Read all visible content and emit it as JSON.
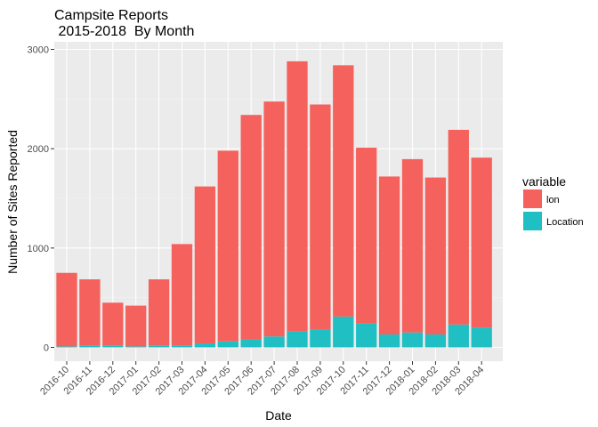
{
  "chart_data": {
    "type": "bar",
    "stacked": true,
    "title_line1": "Campsite Reports",
    "title_line2": " 2015-2018  By Month",
    "xlabel": "Date",
    "ylabel": "Number of Sites Reported",
    "ylim": [
      0,
      3000
    ],
    "yticks": [
      0,
      1000,
      2000,
      3000
    ],
    "grid": true,
    "legend": {
      "title": "variable",
      "position": "right"
    },
    "categories": [
      "2016-10",
      "2016-11",
      "2016-12",
      "2017-01",
      "2017-02",
      "2017-03",
      "2017-04",
      "2017-05",
      "2017-06",
      "2017-07",
      "2017-08",
      "2017-09",
      "2017-10",
      "2017-11",
      "2017-12",
      "2018-01",
      "2018-02",
      "2018-03",
      "2018-04"
    ],
    "series": [
      {
        "name": "Location",
        "color": "#1fbfc4",
        "values": [
          10,
          20,
          20,
          10,
          20,
          20,
          40,
          60,
          80,
          110,
          160,
          180,
          310,
          240,
          130,
          150,
          130,
          230,
          200
        ]
      },
      {
        "name": "lon",
        "color": "#f5615c",
        "values": [
          740,
          665,
          430,
          410,
          665,
          1020,
          1580,
          1920,
          2260,
          2365,
          2720,
          2265,
          2530,
          1770,
          1590,
          1745,
          1580,
          1960,
          1710
        ]
      }
    ]
  }
}
